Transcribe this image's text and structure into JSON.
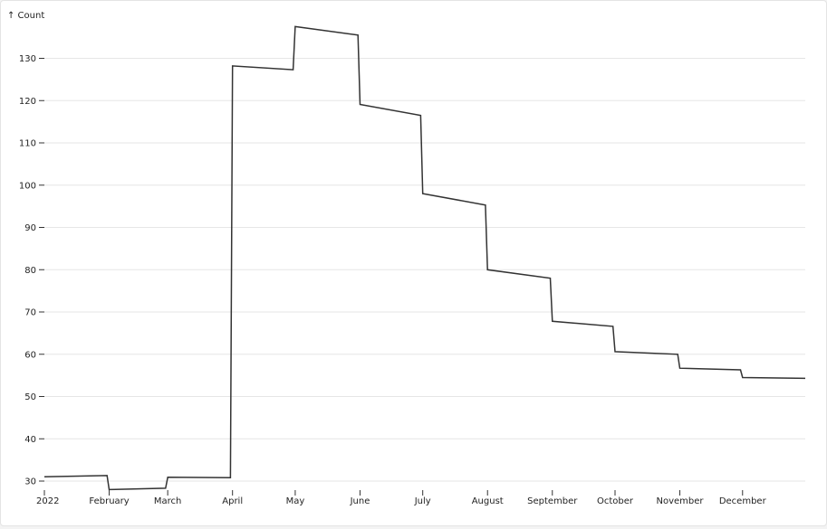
{
  "chart_data": {
    "type": "line",
    "title": "",
    "ylabel": "↑ Count",
    "xlabel": "",
    "ylim": [
      28,
      138
    ],
    "y_ticks": [
      30,
      40,
      50,
      60,
      70,
      80,
      90,
      100,
      110,
      120,
      130
    ],
    "x_ticks": [
      {
        "date": "2022-01-01",
        "label": "2022"
      },
      {
        "date": "2022-02-01",
        "label": "February"
      },
      {
        "date": "2022-03-01",
        "label": "March"
      },
      {
        "date": "2022-04-01",
        "label": "April"
      },
      {
        "date": "2022-05-01",
        "label": "May"
      },
      {
        "date": "2022-06-01",
        "label": "June"
      },
      {
        "date": "2022-07-01",
        "label": "July"
      },
      {
        "date": "2022-08-01",
        "label": "August"
      },
      {
        "date": "2022-09-01",
        "label": "September"
      },
      {
        "date": "2022-10-01",
        "label": "October"
      },
      {
        "date": "2022-11-01",
        "label": "November"
      },
      {
        "date": "2022-12-01",
        "label": "December"
      }
    ],
    "grid": {
      "y": true,
      "x": false
    },
    "line_color": "#333333",
    "series": [
      {
        "name": "",
        "points": [
          {
            "x": "2022-01-01",
            "y": 31.0
          },
          {
            "x": "2022-01-31",
            "y": 31.3
          },
          {
            "x": "2022-02-01",
            "y": 28.0
          },
          {
            "x": "2022-02-28",
            "y": 28.3
          },
          {
            "x": "2022-03-01",
            "y": 30.9
          },
          {
            "x": "2022-03-31",
            "y": 30.8
          },
          {
            "x": "2022-04-01",
            "y": 128.2
          },
          {
            "x": "2022-04-30",
            "y": 127.3
          },
          {
            "x": "2022-05-01",
            "y": 137.5
          },
          {
            "x": "2022-05-31",
            "y": 135.5
          },
          {
            "x": "2022-06-01",
            "y": 119.1
          },
          {
            "x": "2022-06-30",
            "y": 116.5
          },
          {
            "x": "2022-07-01",
            "y": 98.0
          },
          {
            "x": "2022-07-31",
            "y": 95.3
          },
          {
            "x": "2022-08-01",
            "y": 80.0
          },
          {
            "x": "2022-08-31",
            "y": 78.0
          },
          {
            "x": "2022-09-01",
            "y": 67.8
          },
          {
            "x": "2022-09-30",
            "y": 66.6
          },
          {
            "x": "2022-10-01",
            "y": 60.6
          },
          {
            "x": "2022-10-31",
            "y": 60.0
          },
          {
            "x": "2022-11-01",
            "y": 56.7
          },
          {
            "x": "2022-11-30",
            "y": 56.3
          },
          {
            "x": "2022-12-01",
            "y": 54.5
          },
          {
            "x": "2022-12-31",
            "y": 54.3
          }
        ]
      }
    ]
  }
}
